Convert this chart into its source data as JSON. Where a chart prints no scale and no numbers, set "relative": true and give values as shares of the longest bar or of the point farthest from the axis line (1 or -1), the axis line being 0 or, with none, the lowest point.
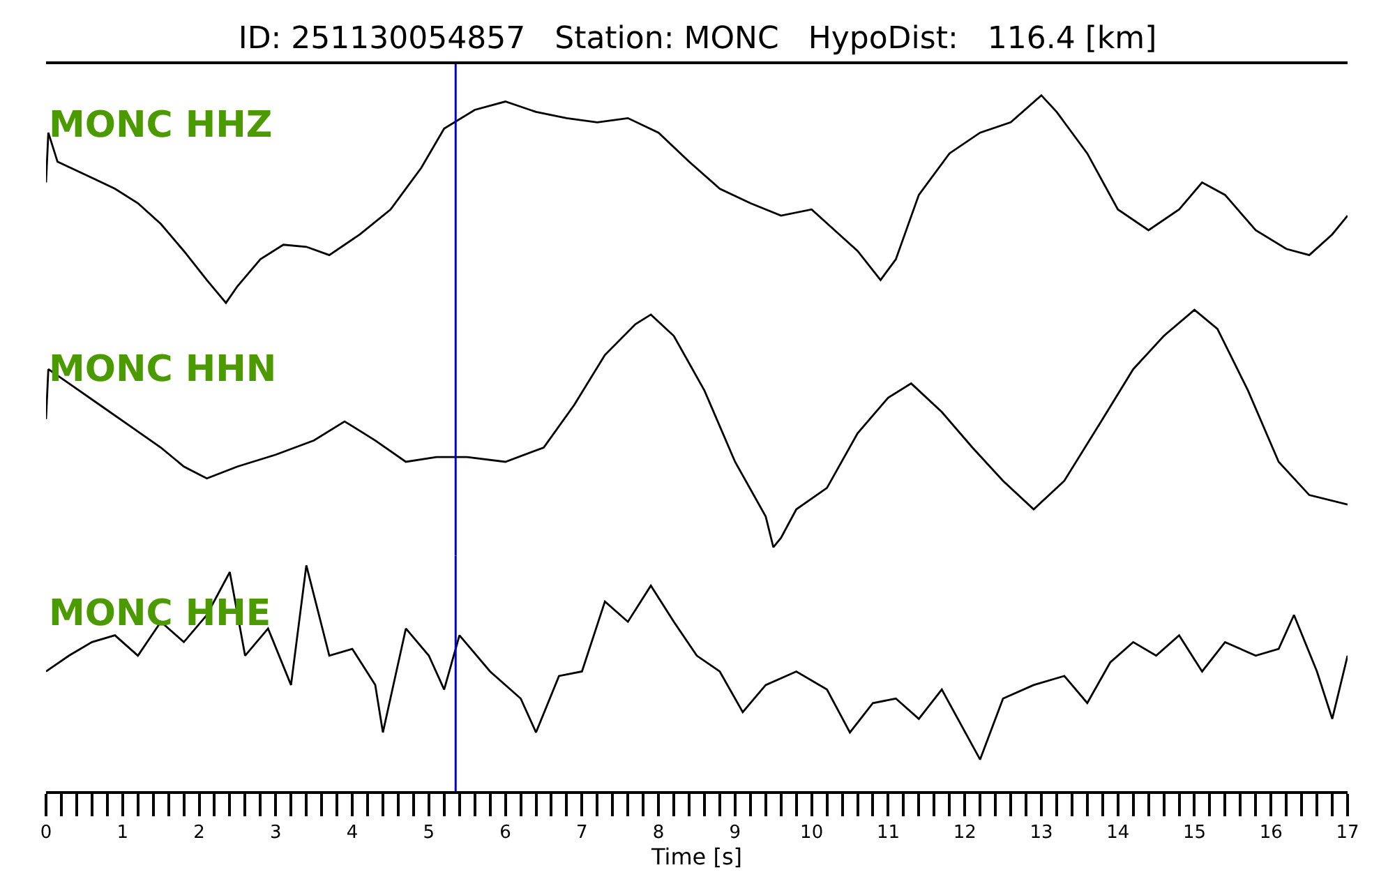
{
  "chart_data": [
    {
      "type": "line",
      "relative": true,
      "title": "ID: 251130054857   Station: MONC   HypoDist:   116.4 [km]",
      "xlim": [
        0,
        17
      ],
      "tick_labels": false,
      "x": [
        0,
        0.03,
        0.15,
        0.5,
        0.9,
        1.2,
        1.5,
        1.8,
        2.1,
        2.35,
        2.5,
        2.8,
        3.1,
        3.4,
        3.7,
        4.1,
        4.5,
        4.9,
        5.2,
        5.6,
        6.0,
        6.4,
        6.8,
        7.2,
        7.6,
        8.0,
        8.4,
        8.8,
        9.2,
        9.6,
        10.0,
        10.3,
        10.6,
        10.9,
        11.1,
        11.4,
        11.8,
        12.2,
        12.6,
        13.0,
        13.2,
        13.6,
        14.0,
        14.4,
        14.8,
        15.1,
        15.4,
        15.8,
        16.2,
        16.5,
        16.8,
        17.0
      ],
      "series": [
        {
          "name": "MONC HHZ",
          "color": "#000000",
          "values": [
            0.58,
            0.82,
            0.68,
            0.62,
            0.55,
            0.48,
            0.38,
            0.25,
            0.11,
            0,
            0.08,
            0.21,
            0.28,
            0.27,
            0.23,
            0.33,
            0.45,
            0.65,
            0.84,
            0.93,
            0.97,
            0.92,
            0.89,
            0.87,
            0.89,
            0.82,
            0.68,
            0.55,
            0.48,
            0.42,
            0.45,
            0.35,
            0.25,
            0.11,
            0.21,
            0.52,
            0.72,
            0.82,
            0.87,
            1.0,
            0.92,
            0.72,
            0.45,
            0.35,
            0.45,
            0.58,
            0.52,
            0.35,
            0.26,
            0.23,
            0.33,
            0.42
          ]
        }
      ],
      "ref_lines": [
        {
          "axis": "x",
          "value": 5.35,
          "color": "#0000cc"
        }
      ]
    },
    {
      "type": "line",
      "relative": true,
      "xlim": [
        0,
        17
      ],
      "tick_labels": false,
      "x": [
        0,
        0.03,
        0.3,
        0.7,
        1.1,
        1.5,
        1.8,
        2.1,
        2.5,
        3.0,
        3.5,
        3.9,
        4.3,
        4.7,
        5.1,
        5.5,
        6.0,
        6.5,
        6.9,
        7.3,
        7.7,
        7.9,
        8.2,
        8.6,
        9.0,
        9.4,
        9.5,
        9.6,
        9.8,
        10.2,
        10.6,
        11.0,
        11.3,
        11.7,
        12.1,
        12.5,
        12.9,
        13.3,
        13.8,
        14.2,
        14.6,
        15.0,
        15.3,
        15.7,
        16.1,
        16.5,
        17.0
      ],
      "series": [
        {
          "name": "MONC HHN",
          "color": "#000000",
          "values": [
            0.54,
            0.75,
            0.69,
            0.6,
            0.51,
            0.42,
            0.34,
            0.29,
            0.34,
            0.39,
            0.45,
            0.53,
            0.45,
            0.36,
            0.38,
            0.38,
            0.36,
            0.42,
            0.6,
            0.81,
            0.94,
            0.98,
            0.89,
            0.66,
            0.36,
            0.13,
            0,
            0.04,
            0.16,
            0.25,
            0.48,
            0.63,
            0.69,
            0.57,
            0.42,
            0.28,
            0.16,
            0.28,
            0.54,
            0.75,
            0.89,
            1.0,
            0.92,
            0.66,
            0.36,
            0.22,
            0.18
          ]
        }
      ],
      "ref_lines": [
        {
          "axis": "x",
          "value": 5.35,
          "color": "#0000cc"
        }
      ]
    },
    {
      "type": "line",
      "relative": true,
      "xlim": [
        0,
        17
      ],
      "tick_labels": "x",
      "xlabel": "Time [s]",
      "xticks": [
        0,
        {
          "value": 0.2,
          "label": null
        },
        {
          "value": 0.4,
          "label": null
        },
        {
          "value": 0.6,
          "label": null
        },
        {
          "value": 0.8,
          "label": null
        },
        1,
        {
          "value": 1.2,
          "label": null
        },
        {
          "value": 1.4,
          "label": null
        },
        {
          "value": 1.6,
          "label": null
        },
        {
          "value": 1.8,
          "label": null
        },
        2,
        {
          "value": 2.2,
          "label": null
        },
        {
          "value": 2.4,
          "label": null
        },
        {
          "value": 2.6,
          "label": null
        },
        {
          "value": 2.8,
          "label": null
        },
        3,
        {
          "value": 3.2,
          "label": null
        },
        {
          "value": 3.4,
          "label": null
        },
        {
          "value": 3.6,
          "label": null
        },
        {
          "value": 3.8,
          "label": null
        },
        4,
        {
          "value": 4.2,
          "label": null
        },
        {
          "value": 4.4,
          "label": null
        },
        {
          "value": 4.6,
          "label": null
        },
        {
          "value": 4.8,
          "label": null
        },
        5,
        {
          "value": 5.2,
          "label": null
        },
        {
          "value": 5.4,
          "label": null
        },
        {
          "value": 5.6,
          "label": null
        },
        {
          "value": 5.8,
          "label": null
        },
        6,
        {
          "value": 6.2,
          "label": null
        },
        {
          "value": 6.4,
          "label": null
        },
        {
          "value": 6.6,
          "label": null
        },
        {
          "value": 6.8,
          "label": null
        },
        7,
        {
          "value": 7.2,
          "label": null
        },
        {
          "value": 7.4,
          "label": null
        },
        {
          "value": 7.6,
          "label": null
        },
        {
          "value": 7.8,
          "label": null
        },
        8,
        {
          "value": 8.2,
          "label": null
        },
        {
          "value": 8.4,
          "label": null
        },
        {
          "value": 8.6,
          "label": null
        },
        {
          "value": 8.8,
          "label": null
        },
        9,
        {
          "value": 9.2,
          "label": null
        },
        {
          "value": 9.4,
          "label": null
        },
        {
          "value": 9.6,
          "label": null
        },
        {
          "value": 9.8,
          "label": null
        },
        10,
        {
          "value": 10.2,
          "label": null
        },
        {
          "value": 10.4,
          "label": null
        },
        {
          "value": 10.6,
          "label": null
        },
        {
          "value": 10.8,
          "label": null
        },
        11,
        {
          "value": 11.2,
          "label": null
        },
        {
          "value": 11.4,
          "label": null
        },
        {
          "value": 11.6,
          "label": null
        },
        {
          "value": 11.8,
          "label": null
        },
        12,
        {
          "value": 12.2,
          "label": null
        },
        {
          "value": 12.4,
          "label": null
        },
        {
          "value": 12.6,
          "label": null
        },
        {
          "value": 12.8,
          "label": null
        },
        13,
        {
          "value": 13.2,
          "label": null
        },
        {
          "value": 13.4,
          "label": null
        },
        {
          "value": 13.6,
          "label": null
        },
        {
          "value": 13.8,
          "label": null
        },
        14,
        {
          "value": 14.2,
          "label": null
        },
        {
          "value": 14.4,
          "label": null
        },
        {
          "value": 14.6,
          "label": null
        },
        {
          "value": 14.8,
          "label": null
        },
        15,
        {
          "value": 15.2,
          "label": null
        },
        {
          "value": 15.4,
          "label": null
        },
        {
          "value": 15.6,
          "label": null
        },
        {
          "value": 15.8,
          "label": null
        },
        16,
        {
          "value": 16.2,
          "label": null
        },
        {
          "value": 16.4,
          "label": null
        },
        {
          "value": 16.6,
          "label": null
        },
        {
          "value": 16.8,
          "label": null
        },
        17
      ],
      "x": [
        0,
        0.3,
        0.6,
        0.9,
        1.2,
        1.5,
        1.8,
        2.1,
        2.4,
        2.6,
        2.9,
        3.2,
        3.4,
        3.7,
        4.0,
        4.3,
        4.4,
        4.7,
        5.0,
        5.2,
        5.4,
        5.8,
        6.2,
        6.4,
        6.7,
        7.0,
        7.3,
        7.6,
        7.9,
        8.2,
        8.5,
        8.8,
        9.1,
        9.4,
        9.8,
        10.2,
        10.5,
        10.8,
        11.1,
        11.4,
        11.7,
        12.2,
        12.5,
        12.9,
        13.3,
        13.6,
        13.9,
        14.2,
        14.5,
        14.8,
        15.1,
        15.4,
        15.8,
        16.1,
        16.3,
        16.6,
        16.8,
        17.0
      ],
      "series": [
        {
          "name": "MONC HHE",
          "color": "#000000",
          "values": [
            0.53,
            0.6,
            0.66,
            0.69,
            0.6,
            0.75,
            0.66,
            0.78,
            0.97,
            0.6,
            0.72,
            0.47,
            1.0,
            0.6,
            0.63,
            0.47,
            0.26,
            0.72,
            0.6,
            0.45,
            0.69,
            0.53,
            0.41,
            0.26,
            0.51,
            0.53,
            0.84,
            0.75,
            0.91,
            0.75,
            0.6,
            0.53,
            0.35,
            0.47,
            0.53,
            0.45,
            0.26,
            0.39,
            0.41,
            0.32,
            0.45,
            0.14,
            0.41,
            0.47,
            0.51,
            0.39,
            0.57,
            0.66,
            0.6,
            0.69,
            0.53,
            0.66,
            0.6,
            0.63,
            0.78,
            0.53,
            0.32,
            0.6
          ]
        }
      ],
      "ref_lines": [
        {
          "axis": "x",
          "value": 5.35,
          "color": "#0000cc"
        }
      ]
    }
  ]
}
